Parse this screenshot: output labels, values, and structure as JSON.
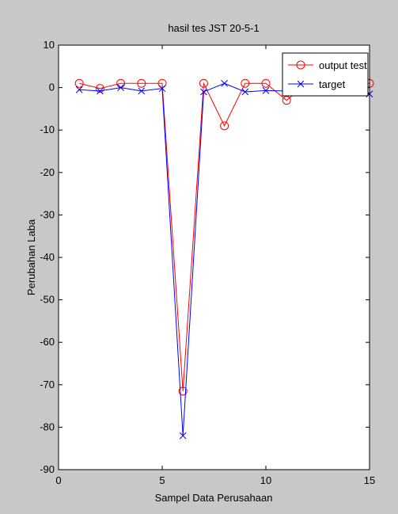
{
  "chart_data": {
    "type": "line",
    "title": "hasil tes JST 20-5-1",
    "xlabel": "Sampel Data Perusahaan",
    "ylabel": "Perubahan Laba",
    "xlim": [
      0,
      15
    ],
    "ylim": [
      -90,
      10
    ],
    "xticks": [
      0,
      5,
      10,
      15
    ],
    "yticks": [
      10,
      0,
      -10,
      -20,
      -30,
      -40,
      -50,
      -60,
      -70,
      -80,
      -90
    ],
    "grid": false,
    "legend_position": "top-right",
    "x": [
      1,
      2,
      3,
      4,
      5,
      6,
      7,
      8,
      9,
      10,
      11,
      12,
      13,
      14,
      15
    ],
    "series": [
      {
        "name": "output test",
        "color": "#ff0000",
        "marker": "circle",
        "values": [
          1,
          -0.2,
          1,
          1,
          1,
          -71.5,
          1,
          -9,
          1,
          1,
          -3,
          1,
          1,
          1,
          1
        ]
      },
      {
        "name": "target",
        "color": "#0000ff",
        "marker": "x",
        "values": [
          -0.5,
          -0.8,
          0,
          -0.8,
          -0.2,
          -82,
          -1,
          1,
          -1,
          -0.7,
          -0.8,
          -0.8,
          -1,
          -0.8,
          -1.5
        ]
      }
    ]
  }
}
